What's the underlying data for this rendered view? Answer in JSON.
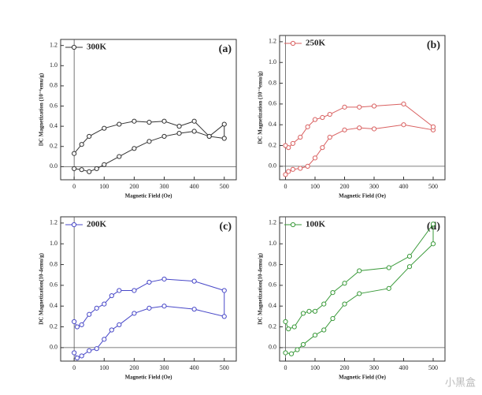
{
  "chart_data": [
    {
      "type": "line",
      "title": "(a)",
      "xlabel": "Magnetic Field (Oe)",
      "ylabel": "DC Magnetization (10⁻⁴emu/g)",
      "x": [
        0,
        25,
        50,
        75,
        100,
        150,
        200,
        250,
        300,
        350,
        400,
        450,
        500,
        500,
        450,
        400,
        350,
        300,
        250,
        200,
        150,
        100,
        50,
        25,
        0
      ],
      "series": [
        {
          "name": "300K",
          "color": "#333333",
          "values": [
            -0.02,
            -0.03,
            -0.05,
            -0.02,
            0.02,
            0.1,
            0.18,
            0.25,
            0.3,
            0.33,
            0.35,
            0.3,
            0.28,
            0.42,
            0.3,
            0.45,
            0.4,
            0.45,
            0.44,
            0.45,
            0.42,
            0.38,
            0.3,
            0.22,
            0.13
          ]
        }
      ],
      "xlim": [
        -45,
        540
      ],
      "ylim": [
        -0.13,
        1.26
      ],
      "xticks": [
        0,
        100,
        200,
        300,
        400,
        500
      ],
      "yticks": [
        {
          "value": 0,
          "label": "0.0"
        },
        {
          "value": 0.2,
          "label": "0.2"
        },
        {
          "value": 0.4,
          "label": "0.4"
        },
        {
          "value": 0.6,
          "label": "0.6"
        },
        {
          "value": 0.8,
          "label": "0.8"
        },
        {
          "value": 1.0,
          "label": "1.0"
        },
        {
          "value": 1.2,
          "label": "1.2"
        }
      ],
      "legend": "upper left"
    },
    {
      "type": "line",
      "title": "(b)",
      "xlabel": "Magnetic Field (Oe)",
      "ylabel": "DC Magnetization (10⁻⁴emu/g)",
      "x": [
        0,
        10,
        25,
        50,
        75,
        100,
        125,
        150,
        200,
        250,
        300,
        400,
        500,
        500,
        400,
        300,
        250,
        200,
        150,
        125,
        100,
        75,
        50,
        25,
        10,
        0
      ],
      "series": [
        {
          "name": "250K",
          "color": "#d96060",
          "values": [
            -0.08,
            -0.05,
            -0.03,
            -0.02,
            0.0,
            0.08,
            0.18,
            0.28,
            0.35,
            0.37,
            0.36,
            0.4,
            0.35,
            0.38,
            0.6,
            0.58,
            0.57,
            0.57,
            0.5,
            0.47,
            0.45,
            0.38,
            0.28,
            0.22,
            0.18,
            0.2
          ]
        }
      ],
      "xlim": [
        -20,
        540
      ],
      "ylim": [
        -0.13,
        1.26
      ],
      "xticks": [
        0,
        100,
        200,
        300,
        400,
        500
      ],
      "yticks": [
        {
          "value": 0,
          "label": "0.0"
        },
        {
          "value": 0.2,
          "label": "0.2"
        },
        {
          "value": 0.4,
          "label": "0.4"
        },
        {
          "value": 0.6,
          "label": "0.6"
        },
        {
          "value": 0.8,
          "label": "0.8"
        },
        {
          "value": 1.0,
          "label": "1.0"
        },
        {
          "value": 1.2,
          "label": "1.2"
        }
      ],
      "legend": "upper left"
    },
    {
      "type": "line",
      "title": "(c)",
      "xlabel": "Magnetic Field (Oe)",
      "ylabel": "DC Magnetization(10-4emu/g)",
      "x": [
        0,
        10,
        25,
        50,
        75,
        100,
        125,
        150,
        200,
        250,
        300,
        400,
        500,
        500,
        400,
        300,
        250,
        200,
        150,
        125,
        100,
        75,
        50,
        25,
        10,
        0
      ],
      "series": [
        {
          "name": "200K",
          "color": "#4848c8",
          "values": [
            -0.05,
            -0.1,
            -0.08,
            -0.03,
            -0.01,
            0.08,
            0.17,
            0.22,
            0.33,
            0.38,
            0.4,
            0.37,
            0.3,
            0.55,
            0.64,
            0.66,
            0.63,
            0.55,
            0.55,
            0.5,
            0.42,
            0.38,
            0.32,
            0.22,
            0.2,
            0.25
          ]
        }
      ],
      "xlim": [
        -45,
        540
      ],
      "ylim": [
        -0.13,
        1.26
      ],
      "xticks": [
        0,
        100,
        200,
        300,
        400,
        500
      ],
      "yticks": [
        {
          "value": 0,
          "label": "0.0"
        },
        {
          "value": 0.2,
          "label": "0.2"
        },
        {
          "value": 0.4,
          "label": "0.4"
        },
        {
          "value": 0.6,
          "label": "0.6"
        },
        {
          "value": 0.8,
          "label": "0.8"
        },
        {
          "value": 1.0,
          "label": "1.0"
        },
        {
          "value": 1.2,
          "label": "1.2"
        }
      ],
      "legend": "upper left"
    },
    {
      "type": "line",
      "title": "(d)",
      "xlabel": "Magnetic Field (Oe)",
      "ylabel": "DC Magnetization(10-4emu/g)",
      "x": [
        0,
        20,
        40,
        60,
        100,
        130,
        160,
        200,
        250,
        350,
        420,
        500,
        500,
        420,
        350,
        250,
        200,
        160,
        130,
        100,
        80,
        60,
        30,
        10,
        0
      ],
      "series": [
        {
          "name": "100K",
          "color": "#3a9a3a",
          "values": [
            -0.05,
            -0.06,
            -0.02,
            0.03,
            0.12,
            0.17,
            0.28,
            0.42,
            0.52,
            0.57,
            0.78,
            1.0,
            1.19,
            0.88,
            0.77,
            0.74,
            0.62,
            0.53,
            0.42,
            0.35,
            0.35,
            0.33,
            0.2,
            0.18,
            0.25
          ]
        }
      ],
      "xlim": [
        -20,
        540
      ],
      "ylim": [
        -0.13,
        1.26
      ],
      "xticks": [
        0,
        100,
        200,
        300,
        400,
        500
      ],
      "yticks": [
        {
          "value": 0,
          "label": "0.0"
        },
        {
          "value": 0.2,
          "label": "0.2"
        },
        {
          "value": 0.4,
          "label": "0.4"
        },
        {
          "value": 0.6,
          "label": "0.6"
        },
        {
          "value": 0.8,
          "label": "0.8"
        },
        {
          "value": 1.0,
          "label": "1.0"
        },
        {
          "value": 1.2,
          "label": "1.2"
        }
      ],
      "legend": "upper left"
    }
  ],
  "watermark": "小黑盒"
}
